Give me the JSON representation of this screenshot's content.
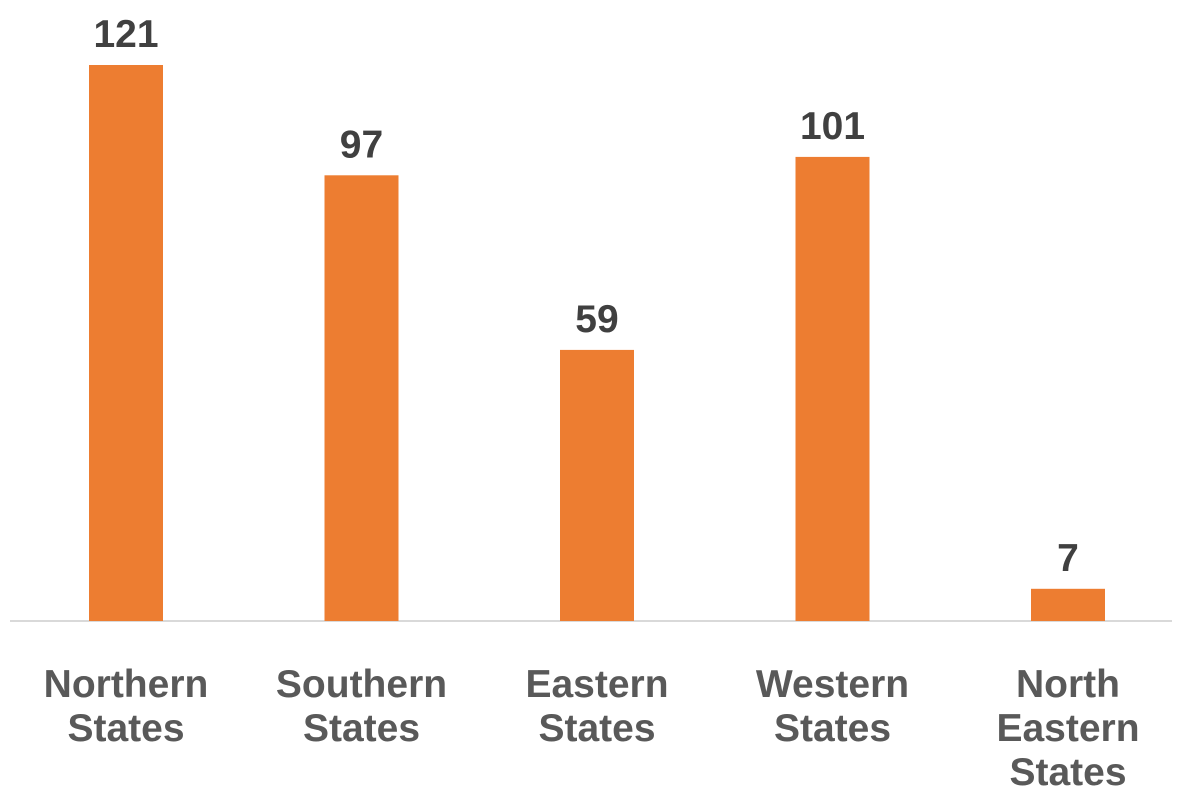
{
  "chart_data": {
    "type": "bar",
    "categories": [
      "Northern States",
      "Southern States",
      "Eastern States",
      "Western States",
      "North Eastern States"
    ],
    "values": [
      121,
      97,
      59,
      101,
      7
    ],
    "title": "",
    "xlabel": "",
    "ylabel": "",
    "ylim": [
      0,
      121
    ],
    "grid": false,
    "legend": "none",
    "bar_color": "#ED7D31",
    "axis_color": "#D9D9D9"
  }
}
